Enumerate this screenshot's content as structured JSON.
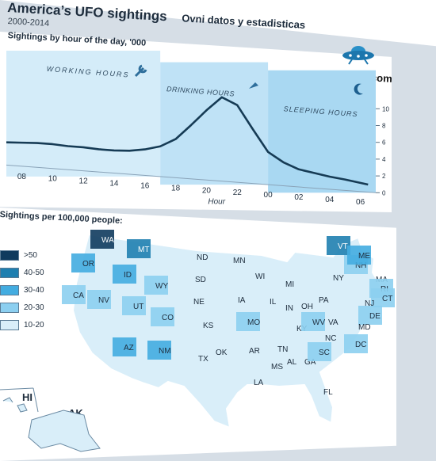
{
  "header": {
    "title": "America’s UFO sightings",
    "subtitle": "Ovni datos y estadisticas",
    "years": "2000-2014",
    "brand": "ReyMisterios.com"
  },
  "colors": {
    "line": "#163b55",
    "band_work": "#d4ecf9",
    "band_drink": "#bfe2f6",
    "band_sleep": "#a9d8f2",
    "legend": [
      "#0f3b5e",
      "#1f7fb0",
      "#43ace0",
      "#8ccff0",
      "#d9eef9"
    ]
  },
  "icons": [
    "ufo-icon",
    "wrench-icon",
    "glass-icon",
    "moon-icon"
  ],
  "chart_data": [
    {
      "type": "line",
      "title": "Sightings by hour of the day, '000",
      "xlabel": "Hour",
      "ylabel": "",
      "x_ticks": [
        "08",
        "10",
        "12",
        "14",
        "16",
        "18",
        "20",
        "22",
        "00",
        "02",
        "04",
        "06"
      ],
      "y_ticks": [
        "0",
        "2",
        "4",
        "6",
        "8",
        "10"
      ],
      "ylim": [
        0,
        11
      ],
      "y_axis_side": "right",
      "grid": false,
      "bands": [
        {
          "label": "WORKING HOURS",
          "from": "07",
          "to": "17"
        },
        {
          "label": "DRINKING HOURS",
          "from": "17",
          "to": "00"
        },
        {
          "label": "SLEEPING HOURS",
          "from": "00",
          "to": "07"
        }
      ],
      "series": [
        {
          "x": [
            7,
            8,
            9,
            10,
            11,
            12,
            13,
            14,
            15,
            16,
            17,
            18,
            19,
            20,
            21,
            22,
            23,
            24,
            25,
            26,
            27,
            28,
            29,
            30.5
          ],
          "y": [
            2.7,
            2.8,
            2.9,
            2.9,
            2.8,
            2.8,
            2.7,
            2.7,
            2.8,
            3.1,
            3.6,
            4.6,
            6.4,
            8.3,
            10.0,
            9.2,
            6.5,
            3.9,
            2.8,
            2.1,
            1.8,
            1.5,
            1.3,
            0.9
          ]
        }
      ]
    },
    {
      "type": "heatmap",
      "title": "Sightings per 100,000 people:",
      "legend": [
        ">50",
        "40-50",
        "30-40",
        "20-30",
        "10-20"
      ],
      "states": [
        "WA",
        "OR",
        "CA",
        "ID",
        "NV",
        "MT",
        "WY",
        "UT",
        "AZ",
        "CO",
        "NM",
        "ND",
        "SD",
        "NE",
        "KS",
        "OK",
        "TX",
        "MN",
        "IA",
        "MO",
        "AR",
        "LA",
        "WI",
        "IL",
        "MI",
        "IN",
        "OH",
        "KY",
        "TN",
        "MS",
        "AL",
        "GA",
        "FL",
        "SC",
        "NC",
        "VA",
        "WV",
        "PA",
        "NY",
        "VT",
        "NH",
        "ME",
        "MA",
        "RI",
        "CT",
        "NJ",
        "DE",
        "MD",
        "DC",
        "HI",
        "AK"
      ],
      "values": [
        ">50",
        "30-40",
        "20-30",
        "30-40",
        "20-30",
        "40-50",
        "20-30",
        "20-30",
        "30-40",
        "20-30",
        "30-40",
        "10-20",
        "10-20",
        "10-20",
        "10-20",
        "10-20",
        "10-20",
        "10-20",
        "10-20",
        "20-30",
        "10-20",
        "10-20",
        "10-20",
        "10-20",
        "10-20",
        "10-20",
        "10-20",
        "10-20",
        "10-20",
        "10-20",
        "10-20",
        "10-20",
        "10-20",
        "20-30",
        "10-20",
        "10-20",
        "20-30",
        "10-20",
        "10-20",
        "40-50",
        "20-30",
        "30-40",
        "10-20",
        "20-30",
        "20-30",
        "10-20",
        "20-30",
        "10-20",
        "20-30",
        "10-20",
        "10-20"
      ]
    }
  ]
}
